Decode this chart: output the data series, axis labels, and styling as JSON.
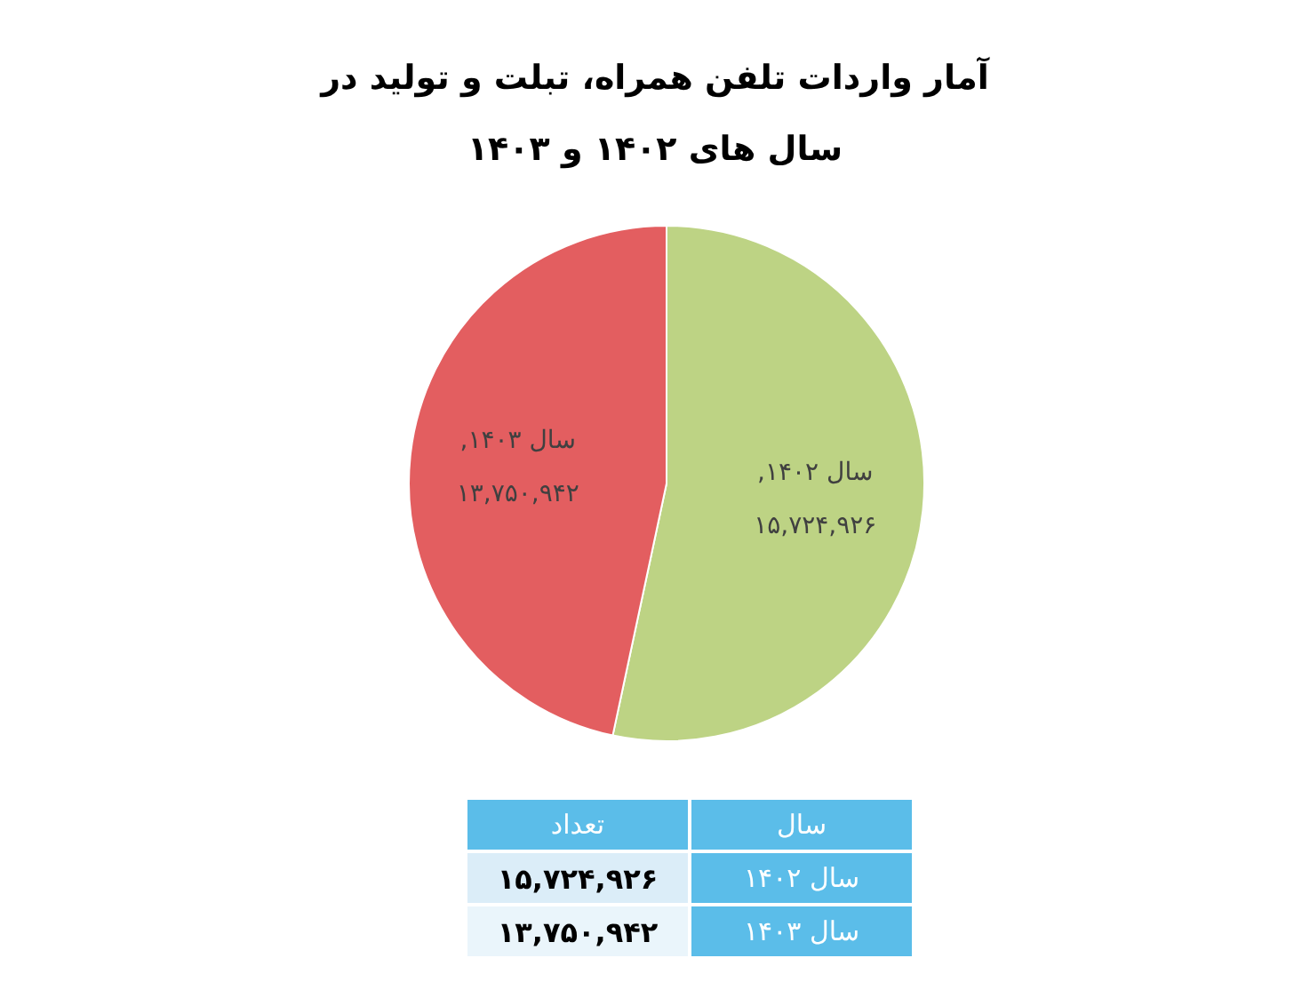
{
  "chart_data": {
    "type": "pie",
    "title": "آمار واردات تلفن همراه، تبلت و تولید در سال های ۱۴۰۲ و ۱۴۰۳",
    "categories": [
      "سال ۱۴۰۲",
      "سال ۱۴۰۳"
    ],
    "values": [
      15724926,
      13750942
    ],
    "value_labels": [
      "۱۵,۷۲۴,۹۲۶",
      "۱۳,۷۵۰,۹۴۲"
    ],
    "colors": [
      "#bdd384",
      "#e35e60"
    ],
    "xlabel": "سال",
    "ylabel": "تعداد",
    "annotations": [
      ",",
      ","
    ]
  }
}
